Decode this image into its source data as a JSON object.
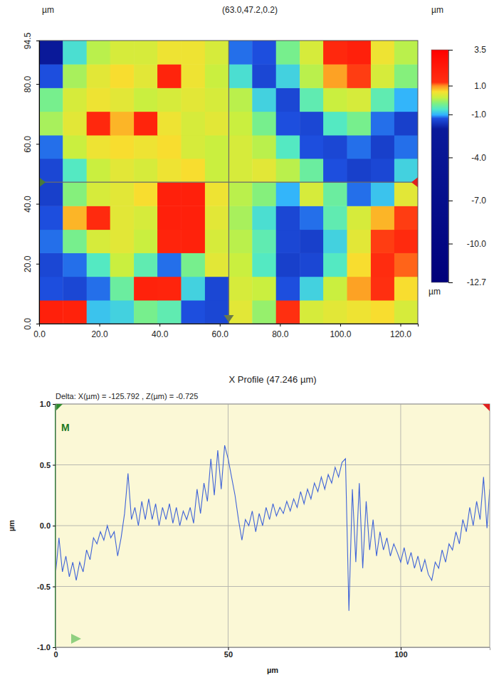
{
  "chart_data": [
    {
      "type": "heatmap",
      "title": "(63.0,47.2,0.2)",
      "x_label": "µm",
      "y_label": "µm",
      "xlim": [
        0,
        125.792
      ],
      "ylim": [
        0,
        94.5
      ],
      "xticks": [
        {
          "value": 0,
          "label": "0.0"
        },
        {
          "value": 20,
          "label": "20.0"
        },
        {
          "value": 40,
          "label": "40.0"
        },
        {
          "value": 60,
          "label": "60.0"
        },
        {
          "value": 80,
          "label": "80.0"
        },
        {
          "value": 100,
          "label": "100.0"
        },
        {
          "value": 120,
          "label": "120.0"
        }
      ],
      "yticks": [
        {
          "value": 0,
          "label": "0.0"
        },
        {
          "value": 20,
          "label": "20.0"
        },
        {
          "value": 40,
          "label": "40.0"
        },
        {
          "value": 60,
          "label": "60.0"
        },
        {
          "value": 80,
          "label": "80.0"
        },
        94.5
      ],
      "x": [
        3.9,
        11.8,
        19.7,
        27.5,
        35.4,
        43.2,
        51.1,
        59.0,
        66.8,
        74.7,
        82.6,
        90.5,
        98.3,
        106.2,
        114.1,
        121.9
      ],
      "y": [
        3.9,
        11.8,
        19.7,
        27.6,
        35.4,
        43.3,
        51.2,
        59.1,
        66.9,
        74.8,
        82.7,
        90.6
      ],
      "z": [
        [
          2.0,
          1.9,
          -0.9,
          -0.8,
          -0.3,
          -0.5,
          -1.3,
          -1.4,
          0.4,
          -0.1,
          1.3,
          0.3,
          0.4,
          0.5,
          0.6,
          0.3
        ],
        [
          -1.3,
          -1.4,
          -1.2,
          -0.4,
          1.9,
          1.8,
          -0.8,
          -1.4,
          0.3,
          0.2,
          -1.3,
          -0.8,
          0.2,
          0.9,
          1.3,
          0.6
        ],
        [
          -1.4,
          -1.2,
          -0.6,
          0.2,
          -0.5,
          -1.2,
          -0.3,
          0.4,
          0.2,
          -0.6,
          -1.5,
          -1.4,
          -0.6,
          0.6,
          1.4,
          1.1
        ],
        [
          -1.2,
          -0.3,
          0.3,
          0.4,
          0.2,
          1.8,
          1.9,
          0.3,
          0.1,
          -0.5,
          -1.4,
          -1.5,
          -0.8,
          0.4,
          1.2,
          1.5
        ],
        [
          -1.3,
          0.8,
          1.5,
          0.4,
          0.3,
          2.0,
          2.0,
          0.4,
          0.0,
          -0.7,
          -1.4,
          -1.2,
          -0.5,
          0.3,
          0.8,
          1.2
        ],
        [
          -1.5,
          -0.2,
          0.3,
          0.4,
          0.6,
          2.0,
          2.0,
          0.5,
          0.1,
          -0.2,
          -1.0,
          0.3,
          -0.4,
          -1.2,
          -0.9,
          0.4
        ],
        [
          -1.4,
          -0.6,
          0.2,
          0.4,
          0.3,
          0.5,
          0.6,
          0.2,
          0.3,
          0.4,
          0.1,
          -0.4,
          -1.3,
          -1.5,
          -1.4,
          -0.8
        ],
        [
          -1.2,
          0.2,
          0.5,
          0.6,
          0.5,
          0.6,
          0.3,
          0.2,
          0.3,
          0.1,
          -0.6,
          -1.3,
          -1.4,
          -1.2,
          -1.5,
          -1.2
        ],
        [
          0.0,
          0.4,
          1.6,
          0.8,
          1.8,
          0.5,
          0.3,
          0.4,
          0.2,
          -0.3,
          -1.3,
          -1.4,
          -0.6,
          -0.3,
          -1.2,
          -1.5
        ],
        [
          -0.3,
          0.3,
          0.5,
          0.4,
          0.2,
          0.3,
          0.4,
          0.3,
          0.1,
          -0.8,
          -1.4,
          -0.5,
          0.2,
          0.3,
          -0.5,
          -1.0
        ],
        [
          -1.3,
          0.0,
          0.4,
          0.6,
          0.4,
          1.8,
          0.5,
          0.2,
          -0.7,
          -1.4,
          -0.8,
          0.1,
          0.9,
          1.2,
          0.3,
          -0.2
        ],
        [
          -2.5,
          -0.7,
          0.1,
          0.3,
          0.3,
          0.5,
          0.5,
          0.3,
          -1.2,
          -1.3,
          -0.3,
          0.3,
          1.6,
          2.0,
          0.5,
          0.1
        ]
      ],
      "colorbar": {
        "label": "µm",
        "range": [
          -12.7,
          3.5
        ],
        "ticks": [
          3.5,
          {
            "value": 1,
            "label": "1.0"
          },
          {
            "value": -1,
            "label": "-1.0"
          },
          {
            "value": -4,
            "label": "-4.0"
          },
          {
            "value": -7,
            "label": "-7.0"
          },
          {
            "value": -10,
            "label": "-10.0"
          },
          -12.7
        ]
      },
      "cursor": {
        "x": 63.0,
        "y": 47.2
      }
    },
    {
      "type": "line",
      "title": "X Profile (47.246 µm)",
      "subtitle": "Delta: X(µm) = -125.792 , Z(µm) = -0.725",
      "x_label": "µm",
      "y_label": "µm",
      "annotations": [
        "M"
      ],
      "color": "#3f63d8",
      "grid": true,
      "xlim": [
        0,
        125.792
      ],
      "ylim": [
        -1,
        1
      ],
      "xticks": [
        0,
        50,
        100
      ],
      "yticks": [
        {
          "value": -1,
          "label": "-1.0"
        },
        -0.5,
        {
          "value": 0,
          "label": "0.0"
        },
        0.5,
        {
          "value": 1,
          "label": "1.0"
        }
      ],
      "x": [
        0,
        1,
        2,
        3,
        4,
        5,
        6,
        7,
        8,
        9,
        10,
        11,
        12,
        13,
        14,
        15,
        16,
        17,
        18,
        19,
        20,
        21,
        22,
        23,
        24,
        25,
        26,
        27,
        28,
        29,
        30,
        31,
        32,
        33,
        34,
        35,
        36,
        37,
        38,
        39,
        40,
        41,
        42,
        43,
        44,
        45,
        46,
        47,
        48,
        49,
        50,
        51,
        52,
        53,
        54,
        55,
        56,
        57,
        58,
        59,
        60,
        61,
        62,
        63,
        64,
        65,
        66,
        67,
        68,
        69,
        70,
        71,
        72,
        73,
        74,
        75,
        76,
        77,
        78,
        79,
        80,
        81,
        82,
        83,
        84,
        85,
        86,
        87,
        88,
        89,
        90,
        91,
        92,
        93,
        94,
        95,
        96,
        97,
        98,
        99,
        100,
        101,
        102,
        103,
        104,
        105,
        106,
        107,
        108,
        109,
        110,
        111,
        112,
        113,
        114,
        115,
        116,
        117,
        118,
        119,
        120,
        121,
        122,
        123,
        124,
        125,
        125.792
      ],
      "values": [
        -0.4,
        -0.1,
        -0.38,
        -0.25,
        -0.42,
        -0.3,
        -0.45,
        -0.3,
        -0.38,
        -0.2,
        -0.28,
        -0.1,
        -0.15,
        -0.05,
        -0.12,
        0.0,
        -0.1,
        -0.05,
        -0.25,
        -0.1,
        0.1,
        0.43,
        0.05,
        0.15,
        0.0,
        0.2,
        0.05,
        0.22,
        0.05,
        0.18,
        0.0,
        0.15,
        0.05,
        0.18,
        0.02,
        0.15,
        0.0,
        0.12,
        0.05,
        0.15,
        0.02,
        0.3,
        0.1,
        0.35,
        0.2,
        0.55,
        0.25,
        0.62,
        0.3,
        0.66,
        0.55,
        0.4,
        0.25,
        0.05,
        -0.12,
        0.05,
        0.0,
        0.12,
        -0.05,
        0.1,
        0.0,
        0.15,
        0.05,
        0.18,
        0.08,
        0.15,
        0.1,
        0.2,
        0.12,
        0.22,
        0.15,
        0.28,
        0.18,
        0.3,
        0.22,
        0.35,
        0.28,
        0.4,
        0.3,
        0.42,
        0.35,
        0.48,
        0.4,
        0.52,
        0.55,
        -0.7,
        0.3,
        -0.3,
        0.35,
        -0.35,
        0.2,
        -0.2,
        0.05,
        -0.25,
        -0.05,
        -0.2,
        -0.1,
        -0.25,
        -0.15,
        -0.22,
        -0.3,
        -0.18,
        -0.32,
        -0.22,
        -0.35,
        -0.25,
        -0.38,
        -0.28,
        -0.4,
        -0.45,
        -0.3,
        -0.35,
        -0.2,
        -0.3,
        -0.15,
        -0.2,
        -0.05,
        -0.15,
        0.05,
        -0.05,
        0.15,
        0.0,
        0.2,
        0.05,
        0.4,
        -0.02,
        0.3
      ]
    }
  ]
}
